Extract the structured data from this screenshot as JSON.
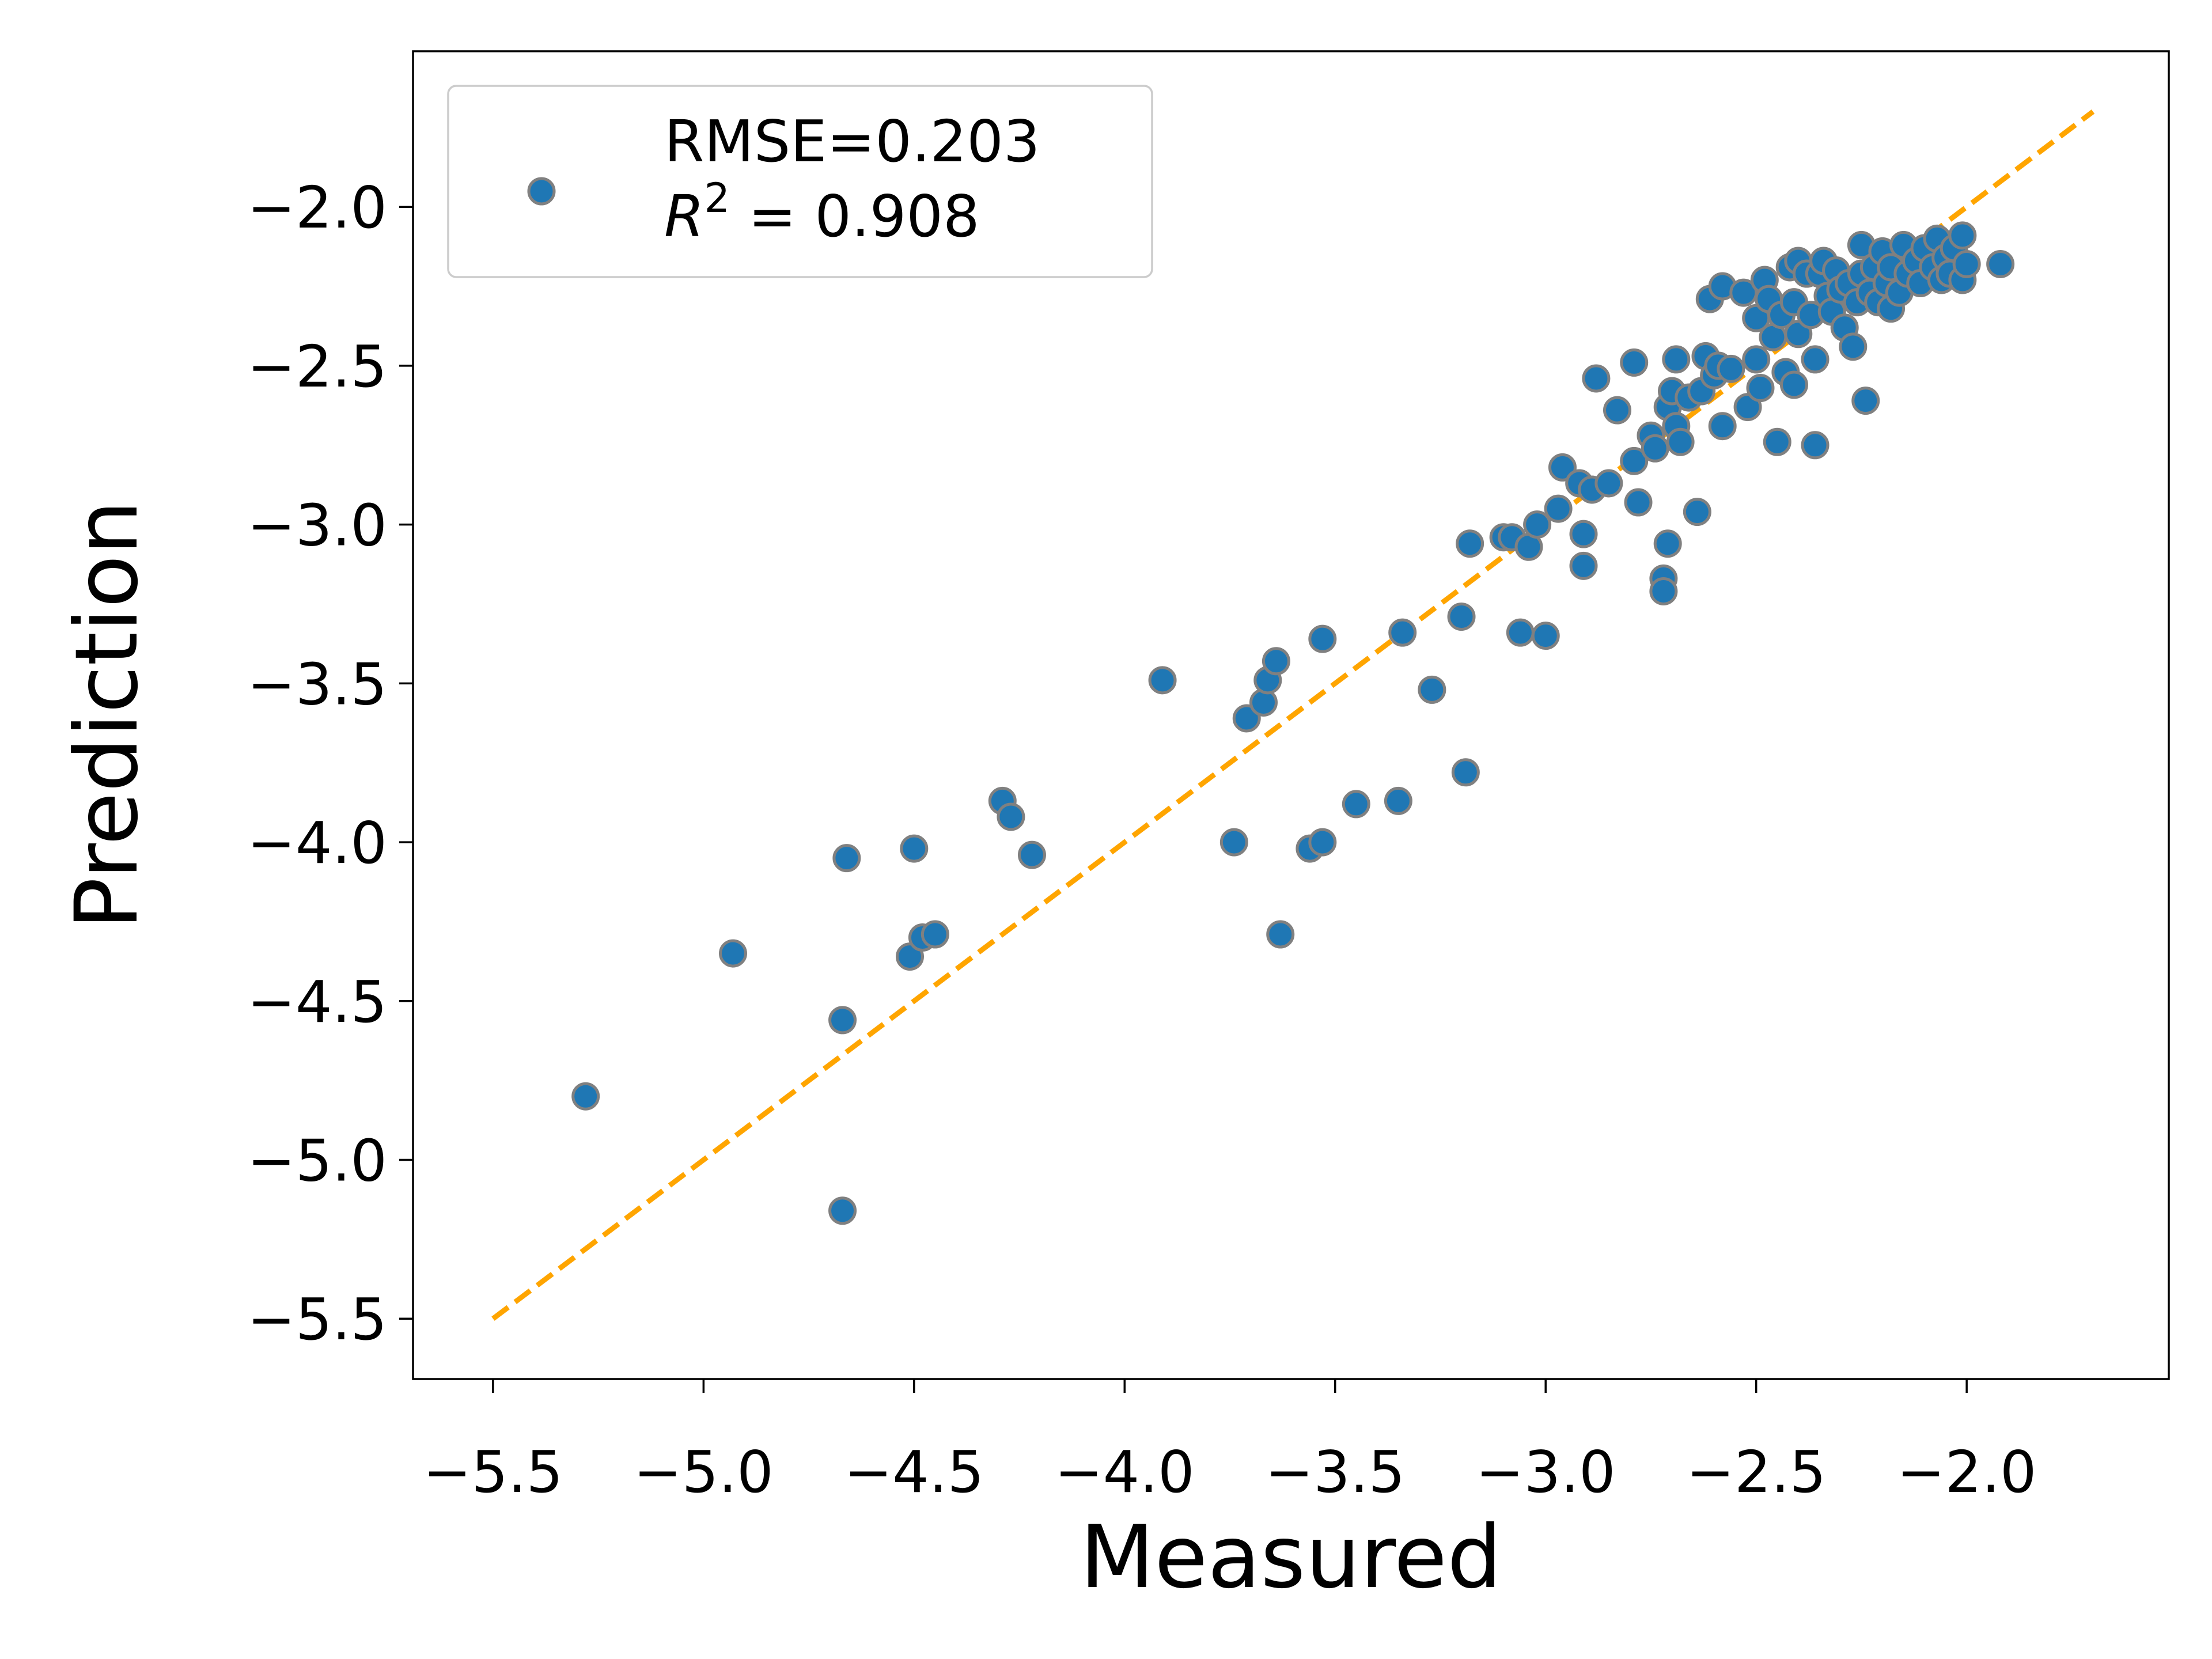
{
  "chart_data": {
    "type": "scatter",
    "xlabel": "Measured",
    "ylabel": "Prediction",
    "xlim": [
      -5.69,
      -1.52
    ],
    "ylim": [
      -5.69,
      -1.51
    ],
    "x_ticks": [
      -5.5,
      -5.0,
      -4.5,
      -4.0,
      -3.5,
      -3.0,
      -2.5,
      -2.0
    ],
    "y_ticks": [
      -5.5,
      -5.0,
      -4.5,
      -4.0,
      -3.5,
      -3.0,
      -2.5,
      -2.0
    ],
    "x_tick_labels": [
      "−5.5",
      "−5.0",
      "−4.5",
      "−4.0",
      "−3.5",
      "−3.0",
      "−2.5",
      "−2.0"
    ],
    "y_tick_labels": [
      "−5.5",
      "−5.0",
      "−4.5",
      "−4.0",
      "−3.5",
      "−3.0",
      "−2.5",
      "−2.0"
    ],
    "grid": false,
    "legend": {
      "location": "top-left",
      "line1": "RMSE=0.203",
      "line2_symbol": "R",
      "line2_superscript": "2",
      "line2_rest": " = 0.908"
    },
    "marker_color": "#1f77b4",
    "marker_edge_color": "#808080",
    "reference_line": {
      "x": [
        -5.5,
        -1.7
      ],
      "y": [
        -5.5,
        -1.7
      ],
      "color": "#ffa500",
      "style": "dashed"
    },
    "series": [
      {
        "points": [
          [
            -5.28,
            -4.8
          ],
          [
            -4.93,
            -4.35
          ],
          [
            -4.67,
            -5.16
          ],
          [
            -4.67,
            -4.56
          ],
          [
            -4.66,
            -4.05
          ],
          [
            -4.51,
            -4.36
          ],
          [
            -4.5,
            -4.02
          ],
          [
            -4.48,
            -4.3
          ],
          [
            -4.45,
            -4.29
          ],
          [
            -4.29,
            -3.87
          ],
          [
            -4.27,
            -3.92
          ],
          [
            -4.22,
            -4.04
          ],
          [
            -3.91,
            -3.49
          ],
          [
            -3.74,
            -4.0
          ],
          [
            -3.71,
            -3.61
          ],
          [
            -3.67,
            -3.56
          ],
          [
            -3.66,
            -3.49
          ],
          [
            -3.64,
            -3.43
          ],
          [
            -3.63,
            -4.29
          ],
          [
            -3.56,
            -4.02
          ],
          [
            -3.53,
            -4.0
          ],
          [
            -3.53,
            -3.36
          ],
          [
            -3.45,
            -3.88
          ],
          [
            -3.35,
            -3.87
          ],
          [
            -3.34,
            -3.34
          ],
          [
            -3.27,
            -3.52
          ],
          [
            -3.2,
            -3.29
          ],
          [
            -3.19,
            -3.78
          ],
          [
            -3.18,
            -3.06
          ],
          [
            -3.1,
            -3.04
          ],
          [
            -3.08,
            -3.04
          ],
          [
            -3.06,
            -3.34
          ],
          [
            -3.04,
            -3.07
          ],
          [
            -3.02,
            -3.0
          ],
          [
            -3.0,
            -3.35
          ],
          [
            -2.97,
            -2.95
          ],
          [
            -2.96,
            -2.82
          ],
          [
            -2.92,
            -2.87
          ],
          [
            -2.91,
            -3.13
          ],
          [
            -2.91,
            -3.03
          ],
          [
            -2.89,
            -2.89
          ],
          [
            -2.88,
            -2.54
          ],
          [
            -2.85,
            -2.87
          ],
          [
            -2.83,
            -2.64
          ],
          [
            -2.79,
            -2.8
          ],
          [
            -2.79,
            -2.49
          ],
          [
            -2.78,
            -2.93
          ],
          [
            -2.75,
            -2.72
          ],
          [
            -2.74,
            -2.76
          ],
          [
            -2.72,
            -3.17
          ],
          [
            -2.72,
            -3.21
          ],
          [
            -2.71,
            -3.06
          ],
          [
            -2.71,
            -2.63
          ],
          [
            -2.7,
            -2.58
          ],
          [
            -2.69,
            -2.69
          ],
          [
            -2.69,
            -2.48
          ],
          [
            -2.68,
            -2.74
          ],
          [
            -2.66,
            -2.6
          ],
          [
            -2.64,
            -2.96
          ],
          [
            -2.63,
            -2.58
          ],
          [
            -2.62,
            -2.47
          ],
          [
            -2.61,
            -2.29
          ],
          [
            -2.6,
            -2.53
          ],
          [
            -2.59,
            -2.5
          ],
          [
            -2.58,
            -2.69
          ],
          [
            -2.58,
            -2.25
          ],
          [
            -2.56,
            -2.51
          ],
          [
            -2.53,
            -2.27
          ],
          [
            -2.52,
            -2.63
          ],
          [
            -2.5,
            -2.35
          ],
          [
            -2.5,
            -2.48
          ],
          [
            -2.49,
            -2.57
          ],
          [
            -2.48,
            -2.23
          ],
          [
            -2.47,
            -2.29
          ],
          [
            -2.46,
            -2.41
          ],
          [
            -2.45,
            -2.74
          ],
          [
            -2.44,
            -2.34
          ],
          [
            -2.43,
            -2.52
          ],
          [
            -2.42,
            -2.19
          ],
          [
            -2.41,
            -2.56
          ],
          [
            -2.41,
            -2.3
          ],
          [
            -2.4,
            -2.4
          ],
          [
            -2.4,
            -2.17
          ],
          [
            -2.38,
            -2.21
          ],
          [
            -2.37,
            -2.34
          ],
          [
            -2.36,
            -2.48
          ],
          [
            -2.36,
            -2.75
          ],
          [
            -2.35,
            -2.21
          ],
          [
            -2.34,
            -2.17
          ],
          [
            -2.33,
            -2.28
          ],
          [
            -2.32,
            -2.33
          ],
          [
            -2.31,
            -2.2
          ],
          [
            -2.3,
            -2.26
          ],
          [
            -2.29,
            -2.38
          ],
          [
            -2.28,
            -2.24
          ],
          [
            -2.27,
            -2.44
          ],
          [
            -2.26,
            -2.3
          ],
          [
            -2.25,
            -2.21
          ],
          [
            -2.25,
            -2.12
          ],
          [
            -2.24,
            -2.61
          ],
          [
            -2.23,
            -2.27
          ],
          [
            -2.22,
            -2.19
          ],
          [
            -2.21,
            -2.3
          ],
          [
            -2.2,
            -2.14
          ],
          [
            -2.19,
            -2.24
          ],
          [
            -2.18,
            -2.32
          ],
          [
            -2.18,
            -2.19
          ],
          [
            -2.16,
            -2.27
          ],
          [
            -2.15,
            -2.12
          ],
          [
            -2.14,
            -2.21
          ],
          [
            -2.12,
            -2.17
          ],
          [
            -2.11,
            -2.24
          ],
          [
            -2.1,
            -2.13
          ],
          [
            -2.08,
            -2.19
          ],
          [
            -2.07,
            -2.1
          ],
          [
            -2.06,
            -2.23
          ],
          [
            -2.05,
            -2.16
          ],
          [
            -2.04,
            -2.21
          ],
          [
            -2.03,
            -2.13
          ],
          [
            -2.01,
            -2.23
          ],
          [
            -2.01,
            -2.09
          ],
          [
            -2.0,
            -2.18
          ],
          [
            -1.92,
            -2.18
          ]
        ]
      }
    ]
  }
}
